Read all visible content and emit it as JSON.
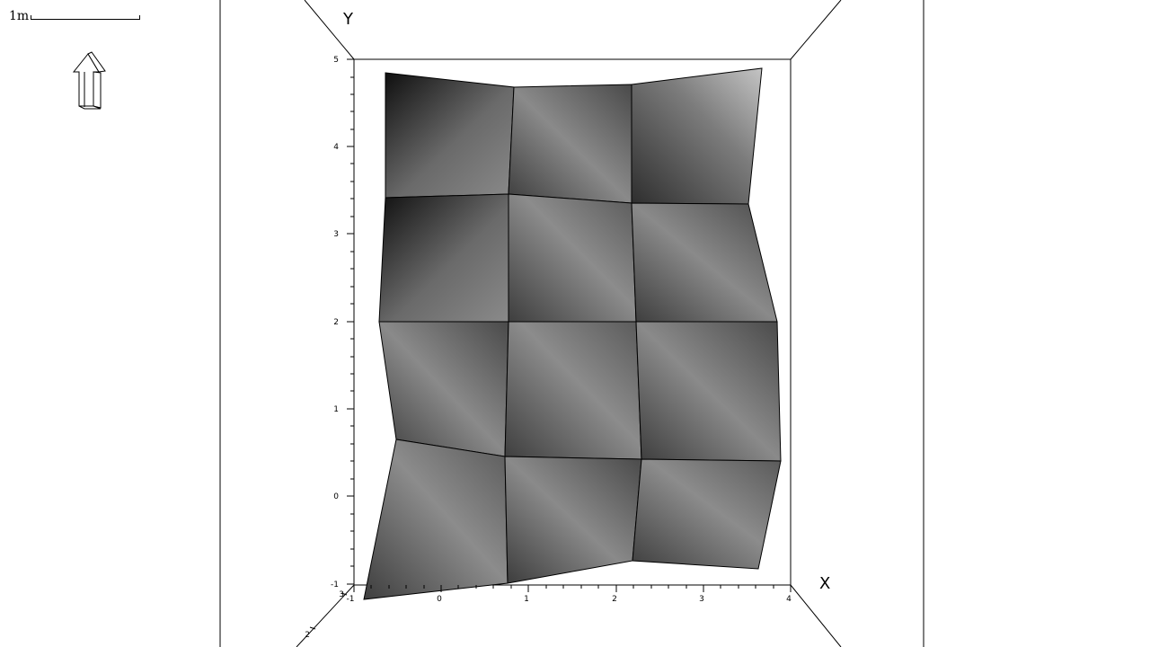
{
  "scalebar": {
    "label": "1m"
  },
  "north_arrow": {
    "icon": "north-arrow-icon"
  },
  "axes": {
    "x": {
      "title": "X",
      "tick_labels": [
        "-1",
        "0",
        "1",
        "2",
        "3",
        "4"
      ]
    },
    "y": {
      "title": "Y",
      "tick_labels": [
        "5",
        "4",
        "3",
        "2",
        "1",
        "0",
        "-1"
      ]
    },
    "z": {
      "tick_labels": [
        "3",
        "2"
      ]
    }
  },
  "surface": {
    "grid_rows": 4,
    "grid_cols": 3,
    "shading": "grayscale"
  },
  "colors": {
    "background": "#ffffff",
    "frame": "#000000",
    "surface_dark": "#111111",
    "surface_light": "#c8c8c8"
  }
}
